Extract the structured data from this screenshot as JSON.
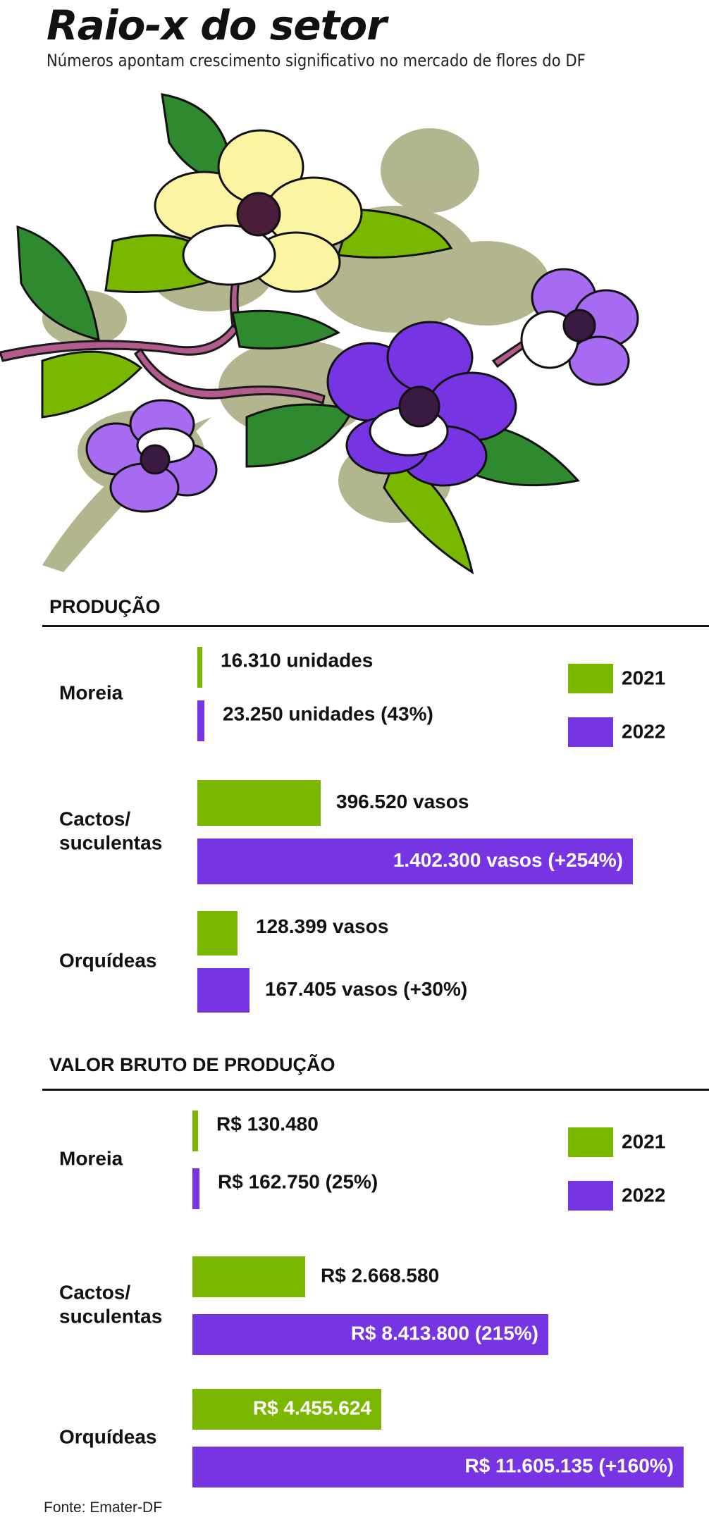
{
  "title": "Raio-x do setor",
  "subtitle": "Números apontam crescimento significativo no mercado de flores do DF",
  "source": "Fonte: Emater-DF",
  "colors": {
    "y2021": "#7ab800",
    "y2022": "#7634e2"
  },
  "illustration": {
    "icons": [
      "leaf-icon",
      "flower-icon"
    ]
  },
  "chart_data": [
    {
      "type": "bar",
      "title": "PRODUÇÃO",
      "orientation": "horizontal",
      "legend": [
        "2021",
        "2022"
      ],
      "legend_position": "top-right",
      "categories": [
        {
          "name": "Moreia",
          "name_lines": [
            "Moreia"
          ]
        },
        {
          "name": "Cactos/ suculentas",
          "name_lines": [
            "Cactos/",
            "suculentas"
          ]
        },
        {
          "name": "Orquídeas",
          "name_lines": [
            "Orquídeas"
          ]
        }
      ],
      "series": [
        {
          "name": "2021",
          "values": [
            16310,
            396520,
            128399
          ],
          "labels": [
            "16.310 unidades",
            "396.520 vasos",
            "128.399 vasos"
          ]
        },
        {
          "name": "2022",
          "values": [
            23250,
            1402300,
            167405
          ],
          "labels": [
            "23.250 unidades (43%)",
            "1.402.300 vasos (+254%)",
            "167.405 vasos (+30%)"
          ]
        }
      ]
    },
    {
      "type": "bar",
      "title": "VALOR BRUTO DE PRODUÇÃO",
      "orientation": "horizontal",
      "legend": [
        "2021",
        "2022"
      ],
      "legend_position": "top-right",
      "categories": [
        {
          "name": "Moreia",
          "name_lines": [
            "Moreia"
          ]
        },
        {
          "name": "Cactos/ suculentas",
          "name_lines": [
            "Cactos/",
            "suculentas"
          ]
        },
        {
          "name": "Orquídeas",
          "name_lines": [
            "Orquídeas"
          ]
        }
      ],
      "series": [
        {
          "name": "2021",
          "values": [
            130480,
            2668580,
            4455624
          ],
          "labels": [
            "R$ 130.480",
            "R$ 2.668.580",
            "R$ 4.455.624"
          ]
        },
        {
          "name": "2022",
          "values": [
            162750,
            8413800,
            11605135
          ],
          "labels": [
            "R$ 162.750 (25%)",
            "R$ 8.413.800 (215%)",
            "R$ 11.605.135 (+160%)"
          ]
        }
      ]
    }
  ]
}
